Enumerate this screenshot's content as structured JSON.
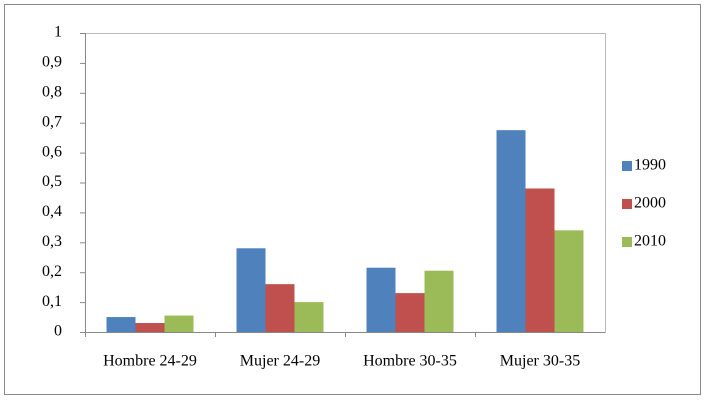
{
  "chart_data": {
    "type": "bar",
    "categories": [
      "Hombre 24-29",
      "Mujer 24-29",
      "Hombre 30-35",
      "Mujer 30-35"
    ],
    "series": [
      {
        "name": "1990",
        "color": "#4f81bd",
        "values": [
          0.05,
          0.28,
          0.215,
          0.675
        ]
      },
      {
        "name": "2000",
        "color": "#c0504d",
        "values": [
          0.03,
          0.16,
          0.13,
          0.48
        ]
      },
      {
        "name": "2010",
        "color": "#9bbb59",
        "values": [
          0.055,
          0.1,
          0.205,
          0.34
        ]
      }
    ],
    "ylim": [
      0,
      1
    ],
    "yticks": [
      0,
      {
        "value": 0.1,
        "label": "0,1"
      },
      {
        "value": 0.2,
        "label": "0,2"
      },
      {
        "value": 0.3,
        "label": "0,3"
      },
      {
        "value": 0.4,
        "label": "0,4"
      },
      {
        "value": 0.5,
        "label": "0,5"
      },
      {
        "value": 0.6,
        "label": "0,6"
      },
      {
        "value": 0.7,
        "label": "0,7"
      },
      {
        "value": 0.8,
        "label": "0,8"
      },
      {
        "value": 0.9,
        "label": "0,9"
      },
      1
    ],
    "grid": false,
    "legend": "right"
  }
}
